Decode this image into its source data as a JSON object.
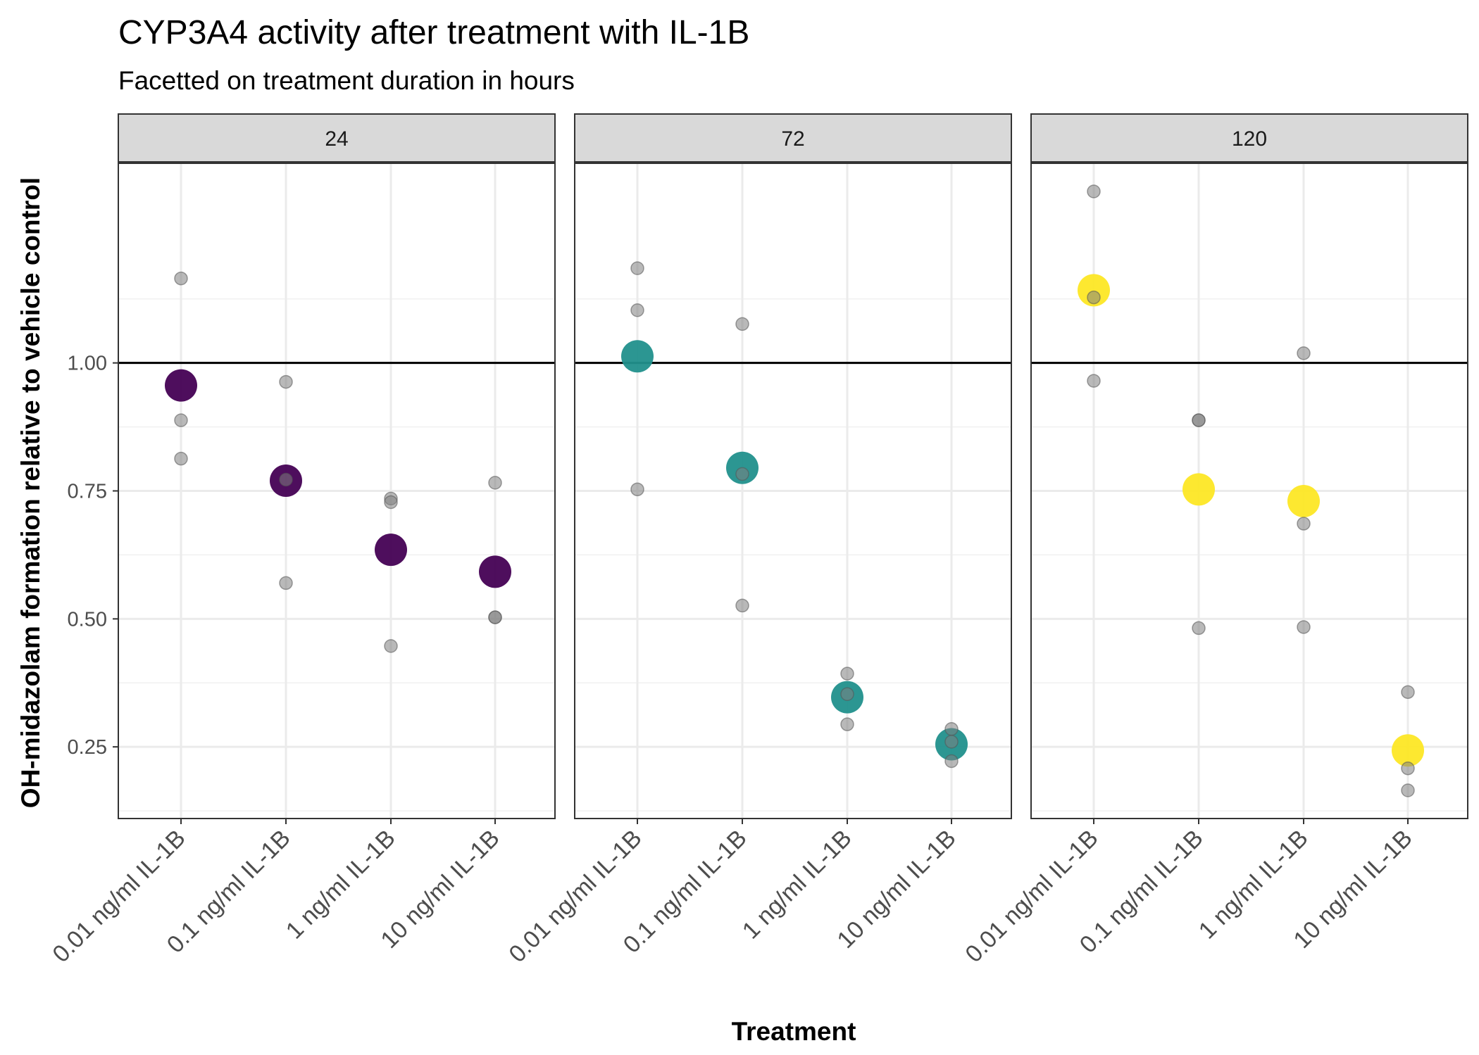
{
  "chart_data": {
    "type": "scatter",
    "title": "CYP3A4 activity after treatment with IL-1B",
    "subtitle": "Facetted on treatment duration in hours",
    "xlabel": "Treatment",
    "ylabel": "OH-midazolam formation relative to vehicle control",
    "ylim": [
      0.11,
      1.39
    ],
    "yticks": [
      0.25,
      0.5,
      0.75,
      1.0
    ],
    "ytick_labels": [
      "0.25",
      "0.50",
      "0.75",
      "1.00"
    ],
    "reference_line": 1.0,
    "grid": true,
    "categories": [
      "0.01 ng/ml IL-1B",
      "0.1 ng/ml IL-1B",
      "1 ng/ml IL-1B",
      "10 ng/ml IL-1B"
    ],
    "point_color": "#808080",
    "panels": [
      {
        "strip": "24",
        "mean_color": "#440154",
        "means": [
          0.956,
          0.77,
          0.635,
          0.592
        ],
        "points": [
          [
            1.165,
            0.888,
            0.813
          ],
          [
            0.963,
            0.772,
            0.57
          ],
          [
            0.735,
            0.728,
            0.447
          ],
          [
            0.766,
            0.503,
            0.503
          ]
        ]
      },
      {
        "strip": "72",
        "mean_color": "#21908C",
        "means": [
          1.013,
          0.795,
          0.347,
          0.255
        ],
        "points": [
          [
            1.185,
            1.103,
            0.753
          ],
          [
            1.076,
            0.783,
            0.526
          ],
          [
            0.393,
            0.353,
            0.294
          ],
          [
            0.285,
            0.26,
            0.222
          ]
        ]
      },
      {
        "strip": "120",
        "mean_color": "#FDE725",
        "means": [
          1.142,
          0.753,
          0.73,
          0.243
        ],
        "points": [
          [
            1.335,
            1.128,
            0.965
          ],
          [
            0.888,
            0.888,
            0.482
          ],
          [
            1.019,
            0.686,
            0.484
          ],
          [
            0.357,
            0.208,
            0.165
          ]
        ]
      }
    ]
  }
}
